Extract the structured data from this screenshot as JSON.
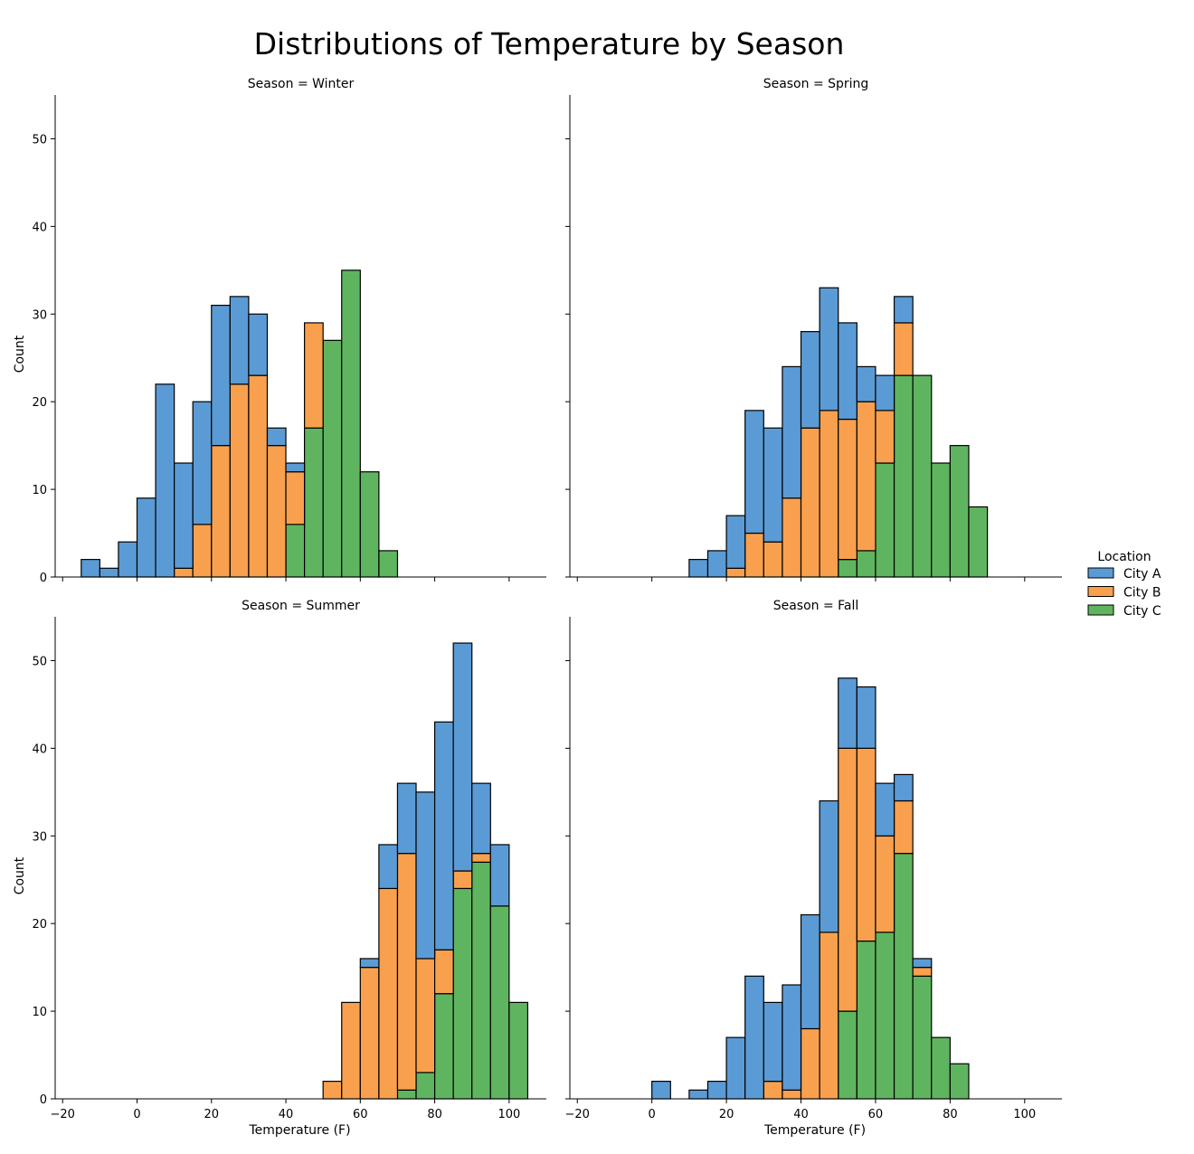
{
  "chart_data": {
    "type": "bar",
    "stacked": true,
    "title": "Distributions of Temperature by Season",
    "xlabel": "Temperature (F)",
    "ylabel": "Count",
    "xlim": [
      -22,
      110
    ],
    "ylim": [
      0,
      55
    ],
    "xticks": [
      -20,
      0,
      20,
      40,
      60,
      80,
      100
    ],
    "yticks": [
      0,
      10,
      20,
      30,
      40,
      50
    ],
    "bin_width": 5,
    "bin_starts": [
      -15,
      -10,
      -5,
      0,
      5,
      10,
      15,
      20,
      25,
      30,
      35,
      40,
      45,
      50,
      55,
      60,
      65,
      70,
      75,
      80,
      85,
      90,
      95,
      100
    ],
    "legend": {
      "title": "Location",
      "position": "right",
      "entries": [
        {
          "name": "City A",
          "color": "#5b9bd5"
        },
        {
          "name": "City B",
          "color": "#f9a04e"
        },
        {
          "name": "City C",
          "color": "#5fb55f"
        }
      ]
    },
    "facets": [
      {
        "title": "Season = Winter",
        "series": [
          {
            "name": "City C",
            "values": [
              0,
              0,
              0,
              0,
              0,
              0,
              0,
              0,
              0,
              0,
              0,
              6,
              17,
              27,
              35,
              12,
              3,
              0,
              0,
              0,
              0,
              0,
              0,
              0
            ]
          },
          {
            "name": "City B",
            "values": [
              0,
              0,
              0,
              0,
              0,
              1,
              6,
              15,
              22,
              23,
              15,
              6,
              12,
              0,
              0,
              0,
              0,
              0,
              0,
              0,
              0,
              0,
              0,
              0
            ]
          },
          {
            "name": "City A",
            "values": [
              2,
              1,
              4,
              9,
              22,
              12,
              14,
              16,
              10,
              7,
              2,
              1,
              0,
              0,
              0,
              0,
              0,
              0,
              0,
              0,
              0,
              0,
              0,
              0
            ]
          }
        ]
      },
      {
        "title": "Season = Spring",
        "series": [
          {
            "name": "City C",
            "values": [
              0,
              0,
              0,
              0,
              0,
              0,
              0,
              0,
              0,
              0,
              0,
              0,
              0,
              2,
              3,
              13,
              23,
              23,
              13,
              15,
              8,
              0,
              0,
              0
            ]
          },
          {
            "name": "City B",
            "values": [
              0,
              0,
              0,
              0,
              0,
              0,
              0,
              1,
              5,
              4,
              9,
              17,
              19,
              16,
              17,
              6,
              6,
              0,
              0,
              0,
              0,
              0,
              0,
              0
            ]
          },
          {
            "name": "City A",
            "values": [
              0,
              0,
              0,
              0,
              0,
              2,
              3,
              6,
              14,
              13,
              15,
              11,
              14,
              11,
              4,
              4,
              3,
              0,
              0,
              0,
              0,
              0,
              0,
              0
            ]
          }
        ]
      },
      {
        "title": "Season = Summer",
        "series": [
          {
            "name": "City C",
            "values": [
              0,
              0,
              0,
              0,
              0,
              0,
              0,
              0,
              0,
              0,
              0,
              0,
              0,
              0,
              0,
              0,
              0,
              1,
              3,
              12,
              24,
              27,
              22,
              11
            ]
          },
          {
            "name": "City B",
            "values": [
              0,
              0,
              0,
              0,
              0,
              0,
              0,
              0,
              0,
              0,
              0,
              0,
              0,
              2,
              11,
              15,
              24,
              27,
              13,
              5,
              2,
              1,
              0,
              0
            ]
          },
          {
            "name": "City A",
            "values": [
              0,
              0,
              0,
              0,
              0,
              0,
              0,
              0,
              0,
              0,
              0,
              0,
              0,
              0,
              0,
              1,
              5,
              8,
              19,
              26,
              26,
              8,
              7,
              0
            ]
          }
        ]
      },
      {
        "title": "Season = Fall",
        "series": [
          {
            "name": "City C",
            "values": [
              0,
              0,
              0,
              0,
              0,
              0,
              0,
              0,
              0,
              0,
              0,
              0,
              0,
              10,
              18,
              19,
              28,
              14,
              7,
              4,
              0,
              0,
              0,
              0
            ]
          },
          {
            "name": "City B",
            "values": [
              0,
              0,
              0,
              0,
              0,
              0,
              0,
              0,
              0,
              2,
              1,
              8,
              19,
              30,
              22,
              11,
              6,
              1,
              0,
              0,
              0,
              0,
              0,
              0
            ]
          },
          {
            "name": "City A",
            "values": [
              0,
              0,
              0,
              2,
              0,
              1,
              2,
              7,
              14,
              9,
              12,
              13,
              15,
              8,
              7,
              6,
              3,
              1,
              0,
              0,
              0,
              0,
              0,
              0
            ]
          }
        ]
      }
    ]
  }
}
